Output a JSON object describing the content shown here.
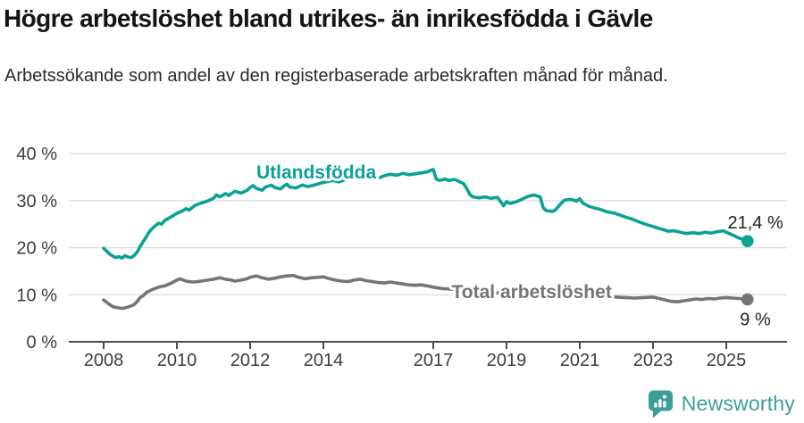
{
  "chart_data": {
    "type": "line",
    "title": "Högre arbetslöshet bland utrikes- än inrikesfödda i Gävle",
    "subtitle": "Arbetssökande som andel av den registerbaserade arbetskraften månad för månad.",
    "x_unit": "year (monthly series)",
    "x_ticks": [
      2008,
      2010,
      2012,
      2014,
      2017,
      2019,
      2021,
      2023,
      2025
    ],
    "y_ticks": [
      0,
      10,
      20,
      30,
      40
    ],
    "y_tick_suffix": " %",
    "ylim": [
      0,
      42
    ],
    "xlim": [
      2007.0,
      2026.7
    ],
    "grid": "horizontal",
    "legend": "inline-labels",
    "series": [
      {
        "name": "Utlandsfödda",
        "color": "#0BA296",
        "end_label": "21,4 %",
        "last_value": 21.4,
        "label_anchor": {
          "year": 2012.17,
          "value": 34.7
        },
        "points": [
          [
            2008.0,
            19.9
          ],
          [
            2008.08,
            19.3
          ],
          [
            2008.17,
            18.6
          ],
          [
            2008.25,
            18.2
          ],
          [
            2008.33,
            17.9
          ],
          [
            2008.42,
            18.1
          ],
          [
            2008.5,
            17.8
          ],
          [
            2008.58,
            18.3
          ],
          [
            2008.67,
            18.0
          ],
          [
            2008.75,
            17.9
          ],
          [
            2008.83,
            18.3
          ],
          [
            2008.92,
            19.1
          ],
          [
            2009.0,
            20.3
          ],
          [
            2009.08,
            21.3
          ],
          [
            2009.17,
            22.4
          ],
          [
            2009.25,
            23.4
          ],
          [
            2009.33,
            24.1
          ],
          [
            2009.42,
            24.7
          ],
          [
            2009.5,
            25.2
          ],
          [
            2009.58,
            25.0
          ],
          [
            2009.67,
            25.8
          ],
          [
            2009.83,
            26.5
          ],
          [
            2010.0,
            27.3
          ],
          [
            2010.17,
            27.9
          ],
          [
            2010.25,
            28.3
          ],
          [
            2010.33,
            28.0
          ],
          [
            2010.5,
            29.0
          ],
          [
            2010.67,
            29.5
          ],
          [
            2010.83,
            29.9
          ],
          [
            2010.92,
            30.2
          ],
          [
            2011.0,
            30.5
          ],
          [
            2011.08,
            31.2
          ],
          [
            2011.17,
            30.8
          ],
          [
            2011.33,
            31.5
          ],
          [
            2011.42,
            31.1
          ],
          [
            2011.58,
            32.0
          ],
          [
            2011.75,
            31.6
          ],
          [
            2011.92,
            32.2
          ],
          [
            2012.0,
            32.8
          ],
          [
            2012.08,
            33.2
          ],
          [
            2012.17,
            32.6
          ],
          [
            2012.33,
            32.2
          ],
          [
            2012.42,
            32.9
          ],
          [
            2012.58,
            33.3
          ],
          [
            2012.67,
            32.8
          ],
          [
            2012.83,
            32.5
          ],
          [
            2012.92,
            33.1
          ],
          [
            2013.0,
            33.5
          ],
          [
            2013.08,
            32.9
          ],
          [
            2013.25,
            32.7
          ],
          [
            2013.42,
            33.3
          ],
          [
            2013.58,
            33.0
          ],
          [
            2013.75,
            33.3
          ],
          [
            2013.92,
            33.7
          ],
          [
            2014.08,
            34.0
          ],
          [
            2014.25,
            34.3
          ],
          [
            2014.42,
            34.0
          ],
          [
            2014.58,
            34.4
          ],
          [
            2014.75,
            34.7
          ],
          [
            2014.92,
            35.0
          ],
          [
            2015.08,
            35.3
          ],
          [
            2015.25,
            35.6
          ],
          [
            2015.42,
            35.0
          ],
          [
            2015.5,
            34.8
          ],
          [
            2015.67,
            35.3
          ],
          [
            2015.83,
            35.6
          ],
          [
            2016.0,
            35.4
          ],
          [
            2016.17,
            35.8
          ],
          [
            2016.33,
            35.5
          ],
          [
            2016.5,
            35.7
          ],
          [
            2016.67,
            35.9
          ],
          [
            2016.83,
            36.1
          ],
          [
            2016.92,
            36.4
          ],
          [
            2017.0,
            36.6
          ],
          [
            2017.08,
            34.6
          ],
          [
            2017.17,
            34.3
          ],
          [
            2017.33,
            34.6
          ],
          [
            2017.42,
            34.3
          ],
          [
            2017.58,
            34.5
          ],
          [
            2017.67,
            34.2
          ],
          [
            2017.83,
            33.6
          ],
          [
            2017.92,
            32.5
          ],
          [
            2018.0,
            31.3
          ],
          [
            2018.08,
            30.8
          ],
          [
            2018.25,
            30.6
          ],
          [
            2018.42,
            30.8
          ],
          [
            2018.58,
            30.5
          ],
          [
            2018.75,
            30.7
          ],
          [
            2018.92,
            28.9
          ],
          [
            2019.0,
            29.8
          ],
          [
            2019.08,
            29.4
          ],
          [
            2019.25,
            29.7
          ],
          [
            2019.42,
            30.3
          ],
          [
            2019.58,
            30.9
          ],
          [
            2019.75,
            31.2
          ],
          [
            2019.92,
            30.8
          ],
          [
            2020.0,
            28.5
          ],
          [
            2020.08,
            27.9
          ],
          [
            2020.25,
            27.7
          ],
          [
            2020.33,
            28.0
          ],
          [
            2020.5,
            29.5
          ],
          [
            2020.58,
            30.1
          ],
          [
            2020.75,
            30.3
          ],
          [
            2020.92,
            29.9
          ],
          [
            2021.0,
            30.4
          ],
          [
            2021.08,
            29.5
          ],
          [
            2021.25,
            28.8
          ],
          [
            2021.42,
            28.4
          ],
          [
            2021.58,
            28.1
          ],
          [
            2021.75,
            27.6
          ],
          [
            2021.92,
            27.4
          ],
          [
            2022.08,
            27.0
          ],
          [
            2022.25,
            26.5
          ],
          [
            2022.42,
            26.1
          ],
          [
            2022.58,
            25.6
          ],
          [
            2022.75,
            25.1
          ],
          [
            2022.92,
            24.7
          ],
          [
            2023.08,
            24.3
          ],
          [
            2023.25,
            23.9
          ],
          [
            2023.42,
            23.5
          ],
          [
            2023.58,
            23.6
          ],
          [
            2023.75,
            23.3
          ],
          [
            2023.92,
            23.0
          ],
          [
            2024.08,
            23.2
          ],
          [
            2024.25,
            23.0
          ],
          [
            2024.42,
            23.3
          ],
          [
            2024.58,
            23.1
          ],
          [
            2024.75,
            23.4
          ],
          [
            2024.92,
            23.6
          ],
          [
            2025.0,
            23.3
          ],
          [
            2025.17,
            22.7
          ],
          [
            2025.33,
            22.1
          ],
          [
            2025.5,
            21.7
          ],
          [
            2025.58,
            21.4
          ]
        ]
      },
      {
        "name": "Total arbetslöshet",
        "color": "#757575",
        "end_label": "9 %",
        "last_value": 9,
        "label_anchor": {
          "year": 2017.5,
          "value": 9.3
        },
        "points": [
          [
            2008.0,
            8.9
          ],
          [
            2008.08,
            8.4
          ],
          [
            2008.17,
            7.9
          ],
          [
            2008.25,
            7.5
          ],
          [
            2008.33,
            7.3
          ],
          [
            2008.42,
            7.2
          ],
          [
            2008.5,
            7.1
          ],
          [
            2008.58,
            7.2
          ],
          [
            2008.67,
            7.4
          ],
          [
            2008.83,
            7.9
          ],
          [
            2008.92,
            8.6
          ],
          [
            2009.0,
            9.4
          ],
          [
            2009.08,
            9.8
          ],
          [
            2009.17,
            10.5
          ],
          [
            2009.33,
            11.1
          ],
          [
            2009.5,
            11.6
          ],
          [
            2009.67,
            11.9
          ],
          [
            2009.83,
            12.4
          ],
          [
            2010.0,
            13.1
          ],
          [
            2010.08,
            13.4
          ],
          [
            2010.25,
            12.9
          ],
          [
            2010.42,
            12.7
          ],
          [
            2010.58,
            12.8
          ],
          [
            2010.75,
            13.0
          ],
          [
            2010.92,
            13.2
          ],
          [
            2011.0,
            13.3
          ],
          [
            2011.17,
            13.6
          ],
          [
            2011.33,
            13.3
          ],
          [
            2011.5,
            13.1
          ],
          [
            2011.58,
            12.9
          ],
          [
            2011.75,
            13.1
          ],
          [
            2011.92,
            13.4
          ],
          [
            2012.0,
            13.7
          ],
          [
            2012.17,
            14.0
          ],
          [
            2012.33,
            13.6
          ],
          [
            2012.5,
            13.3
          ],
          [
            2012.67,
            13.5
          ],
          [
            2012.83,
            13.8
          ],
          [
            2013.0,
            14.0
          ],
          [
            2013.17,
            14.1
          ],
          [
            2013.33,
            13.7
          ],
          [
            2013.5,
            13.4
          ],
          [
            2013.67,
            13.6
          ],
          [
            2013.83,
            13.7
          ],
          [
            2014.0,
            13.8
          ],
          [
            2014.17,
            13.4
          ],
          [
            2014.33,
            13.1
          ],
          [
            2014.5,
            12.9
          ],
          [
            2014.67,
            12.8
          ],
          [
            2014.83,
            13.1
          ],
          [
            2015.0,
            13.3
          ],
          [
            2015.17,
            13.0
          ],
          [
            2015.33,
            12.8
          ],
          [
            2015.5,
            12.6
          ],
          [
            2015.67,
            12.5
          ],
          [
            2015.83,
            12.7
          ],
          [
            2016.0,
            12.5
          ],
          [
            2016.17,
            12.3
          ],
          [
            2016.33,
            12.1
          ],
          [
            2016.5,
            12.0
          ],
          [
            2016.67,
            12.1
          ],
          [
            2016.83,
            11.9
          ],
          [
            2017.0,
            11.6
          ],
          [
            2017.25,
            11.3
          ],
          [
            2017.5,
            11.2
          ],
          [
            2017.75,
            11.0
          ],
          [
            2018.0,
            10.8
          ],
          [
            2018.25,
            10.7
          ],
          [
            2018.5,
            10.5
          ],
          [
            2018.75,
            10.4
          ],
          [
            2019.0,
            10.3
          ],
          [
            2019.25,
            10.1
          ],
          [
            2019.5,
            10.0
          ],
          [
            2019.75,
            9.9
          ],
          [
            2020.0,
            9.8
          ],
          [
            2020.25,
            10.2
          ],
          [
            2020.5,
            10.6
          ],
          [
            2020.75,
            10.5
          ],
          [
            2021.0,
            10.3
          ],
          [
            2021.25,
            10.0
          ],
          [
            2021.5,
            9.8
          ],
          [
            2021.75,
            9.6
          ],
          [
            2022.0,
            9.5
          ],
          [
            2022.25,
            9.4
          ],
          [
            2022.5,
            9.3
          ],
          [
            2022.75,
            9.4
          ],
          [
            2023.0,
            9.5
          ],
          [
            2023.17,
            9.2
          ],
          [
            2023.33,
            8.9
          ],
          [
            2023.5,
            8.6
          ],
          [
            2023.67,
            8.5
          ],
          [
            2023.83,
            8.7
          ],
          [
            2024.0,
            8.9
          ],
          [
            2024.17,
            9.1
          ],
          [
            2024.33,
            9.0
          ],
          [
            2024.5,
            9.2
          ],
          [
            2024.67,
            9.1
          ],
          [
            2024.83,
            9.3
          ],
          [
            2025.0,
            9.4
          ],
          [
            2025.17,
            9.3
          ],
          [
            2025.33,
            9.2
          ],
          [
            2025.5,
            9.1
          ],
          [
            2025.58,
            9.0
          ]
        ]
      }
    ]
  },
  "colors": {
    "foreign_series": "#0BA296",
    "total_series": "#757575",
    "grid": "#DBDBDB",
    "axis": "#4D4D4D",
    "tick_text": "#3D3D3D",
    "annotation_text": "#222222",
    "title_text": "#141414",
    "subtitle_text": "#2A2A2A",
    "brand": "#3D9E99"
  },
  "footer": {
    "brand_name": "Newsworthy",
    "logo_icon": "speech-bubble-bar-chart-icon"
  }
}
